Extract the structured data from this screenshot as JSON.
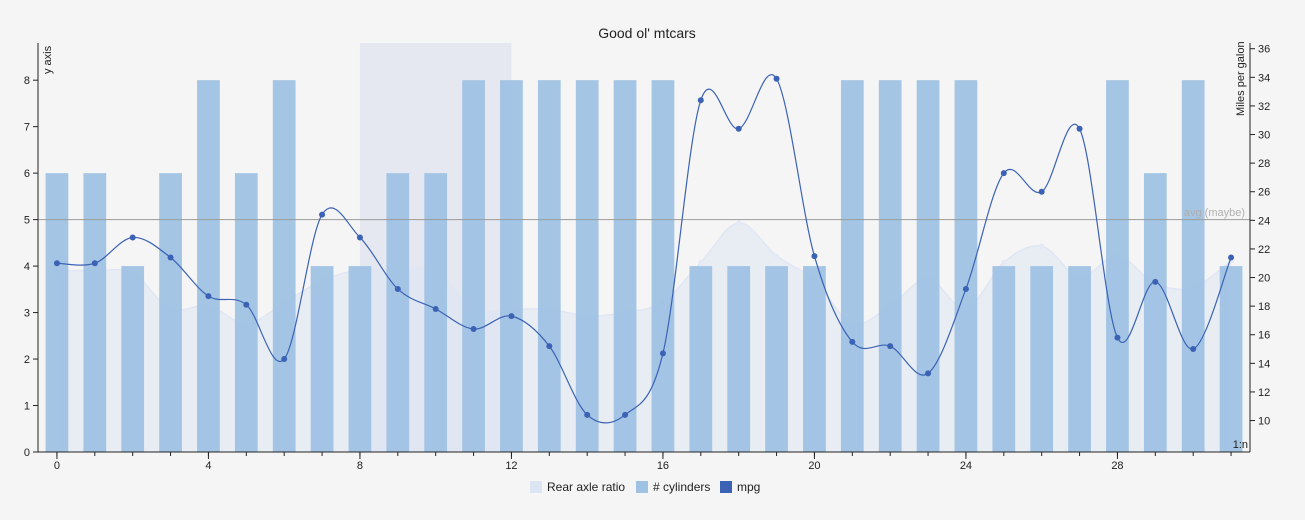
{
  "chart_data": {
    "type": "bar",
    "title": "Good ol' mtcars",
    "ylabel_left": "y axis",
    "ylabel_right": "Miles per galon",
    "corner_label": "1:n",
    "x": [
      0,
      1,
      2,
      3,
      4,
      5,
      6,
      7,
      8,
      9,
      10,
      11,
      12,
      13,
      14,
      15,
      16,
      17,
      18,
      19,
      20,
      21,
      22,
      23,
      24,
      25,
      26,
      27,
      28,
      29,
      30,
      31
    ],
    "xlim": [
      -0.5,
      31.5
    ],
    "x_ticks": [
      0,
      4,
      8,
      12,
      16,
      20,
      24,
      28
    ],
    "ylim_left": [
      0,
      8.8
    ],
    "y_ticks_left": [
      0,
      1,
      2,
      3,
      4,
      5,
      6,
      7,
      8
    ],
    "ylim_right": [
      7.8,
      36.4
    ],
    "y_ticks_right": [
      10,
      12,
      14,
      16,
      18,
      20,
      22,
      24,
      26,
      28,
      30,
      32,
      34,
      36
    ],
    "highlight_band": {
      "x_from": 8,
      "x_to": 12
    },
    "avg_line": {
      "value": 5,
      "label": "avg (maybe)"
    },
    "grid": false,
    "legend_position": "bottom",
    "series": [
      {
        "name": "Rear axle ratio",
        "kind": "area",
        "axis": "left",
        "color": "#dce6f3",
        "values": [
          3.9,
          3.9,
          3.85,
          3.08,
          3.15,
          2.76,
          3.21,
          3.69,
          3.92,
          3.92,
          3.92,
          3.07,
          3.07,
          3.07,
          2.93,
          3.0,
          3.23,
          4.08,
          4.93,
          4.22,
          3.7,
          2.76,
          3.15,
          3.73,
          3.08,
          4.08,
          4.43,
          3.77,
          4.22,
          3.62,
          3.54,
          4.11
        ]
      },
      {
        "name": "# cylinders",
        "kind": "bar",
        "axis": "left",
        "color": "#9fc2e3",
        "values": [
          6,
          6,
          4,
          6,
          8,
          6,
          8,
          4,
          4,
          6,
          6,
          8,
          8,
          8,
          8,
          8,
          8,
          4,
          4,
          4,
          4,
          8,
          8,
          8,
          8,
          4,
          4,
          4,
          8,
          6,
          8,
          4
        ]
      },
      {
        "name": "mpg",
        "kind": "line",
        "axis": "right",
        "color": "#3b62b4",
        "values": [
          21.0,
          21.0,
          22.8,
          21.4,
          18.7,
          18.1,
          14.3,
          24.4,
          22.8,
          19.2,
          17.8,
          16.4,
          17.3,
          15.2,
          10.4,
          10.4,
          14.7,
          32.4,
          30.4,
          33.9,
          21.5,
          15.5,
          15.2,
          13.3,
          19.2,
          27.3,
          26.0,
          30.4,
          15.8,
          19.7,
          15.0,
          21.4
        ]
      }
    ]
  }
}
